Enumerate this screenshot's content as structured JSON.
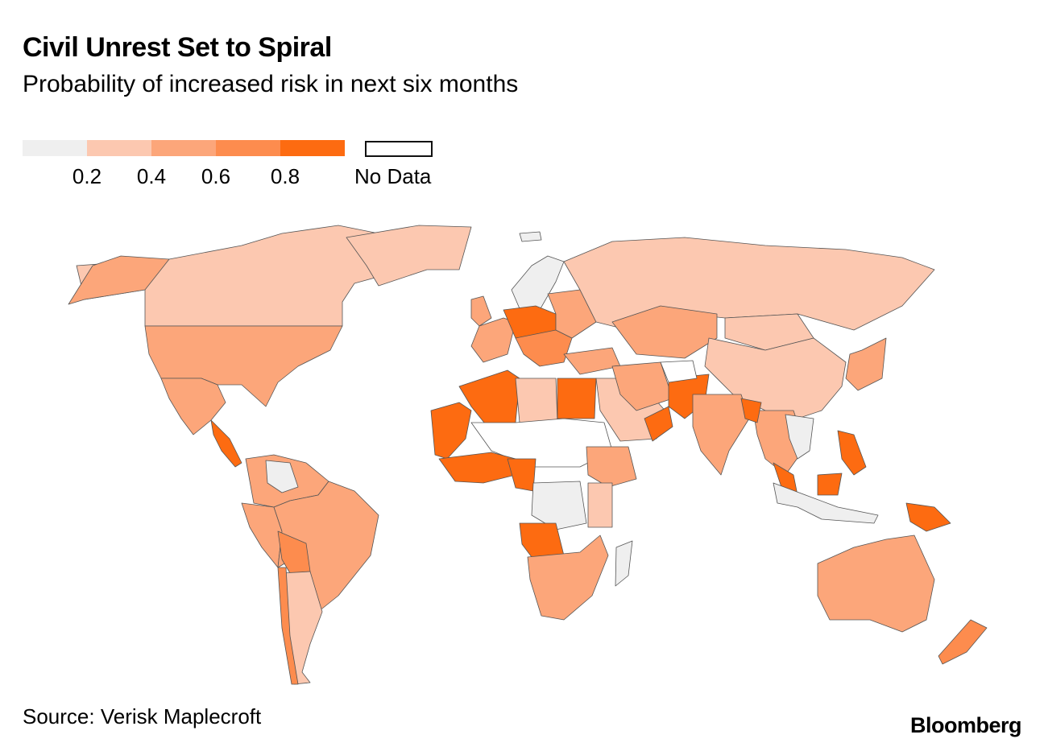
{
  "title": "Civil Unrest Set to Spiral",
  "subtitle": "Probability of increased risk in next six months",
  "legend": {
    "bins": [
      {
        "color": "#efefef"
      },
      {
        "color": "#fcc8b0"
      },
      {
        "color": "#fca67a"
      },
      {
        "color": "#fd8c4e"
      },
      {
        "color": "#fd6b11"
      }
    ],
    "ticks": [
      "0.2",
      "0.4",
      "0.6",
      "0.8"
    ],
    "no_data_label": "No Data"
  },
  "colors": {
    "lowest": "#efefef",
    "low": "#fcc8b0",
    "mid": "#fca67a",
    "high": "#fd8c4e",
    "highest": "#fd6b11",
    "no_data": "#ffffff",
    "border": "#555555"
  },
  "source": "Source: Verisk Maplecroft",
  "brand": "Bloomberg"
}
